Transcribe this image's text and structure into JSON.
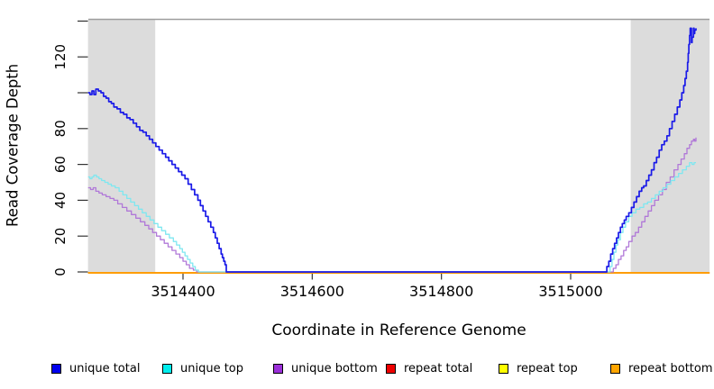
{
  "figure": {
    "xlabel": "Coordinate in Reference Genome",
    "ylabel": "Read Coverage Depth"
  },
  "chart_data": {
    "type": "line",
    "title": "",
    "xlabel": "Coordinate in Reference Genome",
    "ylabel": "Read Coverage Depth",
    "x_axis": {
      "min": 3514253,
      "max": 3515215,
      "ticks": [
        3514400,
        3514600,
        3514800,
        3515000
      ]
    },
    "y_axis": {
      "min": 0,
      "max": 141,
      "ticks": [
        0,
        20,
        40,
        60,
        80,
        100,
        120,
        140
      ],
      "labeled_ticks": [
        0,
        20,
        40,
        60,
        80,
        120
      ]
    },
    "grid": false,
    "top_rule_value": 141,
    "shaded_regions": [
      {
        "x1": 3514253,
        "x2": 3514357,
        "color": "#dcdcdc"
      },
      {
        "x1": 3515093,
        "x2": 3515215,
        "color": "#dcdcdc"
      }
    ],
    "colors": {
      "axis": "#333333",
      "top_rule": "#9e9e9e",
      "background": "#ffffff"
    },
    "series": [
      {
        "name": "repeat total",
        "color": "#dd0000",
        "width": 1.4,
        "points": [
          [
            3514253,
            0
          ],
          [
            3515215,
            0
          ]
        ]
      },
      {
        "name": "repeat top",
        "color": "#ffff00",
        "width": 1.4,
        "points": [
          [
            3514253,
            0
          ],
          [
            3515215,
            0
          ]
        ]
      },
      {
        "name": "repeat bottom",
        "color": "#ff9800",
        "width": 1.8,
        "points": [
          [
            3514253,
            0
          ],
          [
            3515215,
            0
          ]
        ]
      },
      {
        "name": "unique bottom",
        "color": "#b078d8",
        "width": 1.3,
        "points": [
          [
            3514253,
            47
          ],
          [
            3514257,
            46
          ],
          [
            3514261,
            47
          ],
          [
            3514265,
            45
          ],
          [
            3514270,
            44
          ],
          [
            3514275,
            43
          ],
          [
            3514281,
            42
          ],
          [
            3514287,
            41
          ],
          [
            3514293,
            40
          ],
          [
            3514299,
            38
          ],
          [
            3514306,
            36
          ],
          [
            3514313,
            34
          ],
          [
            3514320,
            32
          ],
          [
            3514327,
            30
          ],
          [
            3514334,
            28
          ],
          [
            3514341,
            26
          ],
          [
            3514347,
            24
          ],
          [
            3514353,
            22
          ],
          [
            3514359,
            20
          ],
          [
            3514365,
            18
          ],
          [
            3514371,
            16
          ],
          [
            3514377,
            14
          ],
          [
            3514383,
            12
          ],
          [
            3514389,
            10
          ],
          [
            3514395,
            8
          ],
          [
            3514400,
            6
          ],
          [
            3514405,
            4
          ],
          [
            3514410,
            2
          ],
          [
            3514416,
            1
          ],
          [
            3514421,
            0
          ],
          [
            3515062,
            0
          ],
          [
            3515066,
            2
          ],
          [
            3515070,
            4
          ],
          [
            3515074,
            7
          ],
          [
            3515078,
            9
          ],
          [
            3515082,
            12
          ],
          [
            3515086,
            14
          ],
          [
            3515090,
            17
          ],
          [
            3515095,
            20
          ],
          [
            3515100,
            22
          ],
          [
            3515105,
            25
          ],
          [
            3515110,
            28
          ],
          [
            3515115,
            31
          ],
          [
            3515120,
            34
          ],
          [
            3515125,
            37
          ],
          [
            3515130,
            40
          ],
          [
            3515136,
            43
          ],
          [
            3515142,
            46
          ],
          [
            3515148,
            50
          ],
          [
            3515154,
            53
          ],
          [
            3515160,
            57
          ],
          [
            3515166,
            60
          ],
          [
            3515171,
            63
          ],
          [
            3515176,
            66
          ],
          [
            3515180,
            69
          ],
          [
            3515184,
            71
          ],
          [
            3515187,
            73
          ],
          [
            3515190,
            74
          ],
          [
            3515192,
            73
          ],
          [
            3515194,
            75
          ]
        ]
      },
      {
        "name": "unique top",
        "color": "#7ee7f0",
        "width": 1.3,
        "points": [
          [
            3514253,
            53
          ],
          [
            3514256,
            52
          ],
          [
            3514259,
            53
          ],
          [
            3514262,
            54
          ],
          [
            3514266,
            53
          ],
          [
            3514270,
            52
          ],
          [
            3514274,
            51
          ],
          [
            3514279,
            50
          ],
          [
            3514284,
            49
          ],
          [
            3514289,
            48
          ],
          [
            3514295,
            47
          ],
          [
            3514301,
            45
          ],
          [
            3514307,
            43
          ],
          [
            3514313,
            41
          ],
          [
            3514319,
            39
          ],
          [
            3514325,
            37
          ],
          [
            3514331,
            35
          ],
          [
            3514337,
            33
          ],
          [
            3514343,
            31
          ],
          [
            3514349,
            29
          ],
          [
            3514355,
            27
          ],
          [
            3514361,
            25
          ],
          [
            3514367,
            23
          ],
          [
            3514373,
            21
          ],
          [
            3514379,
            19
          ],
          [
            3514385,
            17
          ],
          [
            3514390,
            15
          ],
          [
            3514395,
            13
          ],
          [
            3514399,
            11
          ],
          [
            3514403,
            9
          ],
          [
            3514407,
            7
          ],
          [
            3514411,
            5
          ],
          [
            3514415,
            3
          ],
          [
            3514419,
            1
          ],
          [
            3514424,
            0
          ],
          [
            3515058,
            0
          ],
          [
            3515061,
            3
          ],
          [
            3515064,
            7
          ],
          [
            3515067,
            11
          ],
          [
            3515070,
            15
          ],
          [
            3515073,
            18
          ],
          [
            3515077,
            22
          ],
          [
            3515081,
            25
          ],
          [
            3515085,
            28
          ],
          [
            3515090,
            31
          ],
          [
            3515095,
            33
          ],
          [
            3515101,
            35
          ],
          [
            3515107,
            36
          ],
          [
            3515113,
            38
          ],
          [
            3515119,
            39
          ],
          [
            3515125,
            41
          ],
          [
            3515131,
            43
          ],
          [
            3515137,
            45
          ],
          [
            3515143,
            47
          ],
          [
            3515149,
            49
          ],
          [
            3515155,
            51
          ],
          [
            3515161,
            53
          ],
          [
            3515167,
            55
          ],
          [
            3515173,
            57
          ],
          [
            3515179,
            59
          ],
          [
            3515184,
            61
          ],
          [
            3515188,
            60
          ],
          [
            3515191,
            61
          ],
          [
            3515194,
            61
          ]
        ]
      },
      {
        "name": "unique total",
        "color": "#1a1ae8",
        "width": 1.7,
        "points": [
          [
            3514253,
            100
          ],
          [
            3514256,
            99
          ],
          [
            3514259,
            101
          ],
          [
            3514262,
            99
          ],
          [
            3514265,
            102
          ],
          [
            3514269,
            101
          ],
          [
            3514273,
            100
          ],
          [
            3514277,
            98
          ],
          [
            3514281,
            97
          ],
          [
            3514285,
            95
          ],
          [
            3514289,
            94
          ],
          [
            3514293,
            92
          ],
          [
            3514298,
            91
          ],
          [
            3514303,
            89
          ],
          [
            3514308,
            88
          ],
          [
            3514313,
            86
          ],
          [
            3514318,
            85
          ],
          [
            3514323,
            83
          ],
          [
            3514328,
            81
          ],
          [
            3514333,
            79
          ],
          [
            3514338,
            78
          ],
          [
            3514343,
            76
          ],
          [
            3514348,
            74
          ],
          [
            3514353,
            72
          ],
          [
            3514358,
            70
          ],
          [
            3514363,
            68
          ],
          [
            3514368,
            66
          ],
          [
            3514373,
            64
          ],
          [
            3514378,
            62
          ],
          [
            3514383,
            60
          ],
          [
            3514388,
            58
          ],
          [
            3514393,
            56
          ],
          [
            3514398,
            54
          ],
          [
            3514403,
            52
          ],
          [
            3514408,
            49
          ],
          [
            3514413,
            46
          ],
          [
            3514418,
            43
          ],
          [
            3514423,
            40
          ],
          [
            3514427,
            37
          ],
          [
            3514431,
            34
          ],
          [
            3514435,
            31
          ],
          [
            3514439,
            28
          ],
          [
            3514443,
            25
          ],
          [
            3514447,
            22
          ],
          [
            3514450,
            19
          ],
          [
            3514453,
            16
          ],
          [
            3514456,
            13
          ],
          [
            3514459,
            10
          ],
          [
            3514461,
            8
          ],
          [
            3514463,
            6
          ],
          [
            3514465,
            4
          ],
          [
            3514467,
            0
          ],
          [
            3515054,
            0
          ],
          [
            3515056,
            3
          ],
          [
            3515059,
            6
          ],
          [
            3515062,
            10
          ],
          [
            3515065,
            13
          ],
          [
            3515068,
            16
          ],
          [
            3515071,
            19
          ],
          [
            3515074,
            22
          ],
          [
            3515077,
            25
          ],
          [
            3515080,
            27
          ],
          [
            3515083,
            29
          ],
          [
            3515086,
            31
          ],
          [
            3515090,
            33
          ],
          [
            3515094,
            36
          ],
          [
            3515098,
            39
          ],
          [
            3515102,
            42
          ],
          [
            3515106,
            45
          ],
          [
            3515110,
            47
          ],
          [
            3515113,
            48
          ],
          [
            3515117,
            51
          ],
          [
            3515121,
            54
          ],
          [
            3515125,
            57
          ],
          [
            3515129,
            61
          ],
          [
            3515133,
            64
          ],
          [
            3515137,
            68
          ],
          [
            3515141,
            71
          ],
          [
            3515145,
            73
          ],
          [
            3515149,
            76
          ],
          [
            3515153,
            80
          ],
          [
            3515157,
            84
          ],
          [
            3515161,
            88
          ],
          [
            3515165,
            92
          ],
          [
            3515169,
            96
          ],
          [
            3515172,
            100
          ],
          [
            3515175,
            104
          ],
          [
            3515177,
            108
          ],
          [
            3515179,
            112
          ],
          [
            3515181,
            117
          ],
          [
            3515182,
            122
          ],
          [
            3515183,
            127
          ],
          [
            3515184,
            132
          ],
          [
            3515185,
            136
          ],
          [
            3515187,
            128
          ],
          [
            3515188,
            131
          ],
          [
            3515190,
            136
          ],
          [
            3515191,
            133
          ],
          [
            3515192,
            135
          ],
          [
            3515194,
            136
          ]
        ]
      }
    ],
    "legend": {
      "position": "bottom",
      "items": [
        {
          "label": "unique total",
          "color": "#0000ee"
        },
        {
          "label": "unique top",
          "color": "#00eeee"
        },
        {
          "label": "unique bottom",
          "color": "#9b30d9"
        },
        {
          "label": "repeat total",
          "color": "#ee0000"
        },
        {
          "label": "repeat top",
          "color": "#ffff00"
        },
        {
          "label": "repeat bottom",
          "color": "#ffa500"
        }
      ]
    }
  }
}
